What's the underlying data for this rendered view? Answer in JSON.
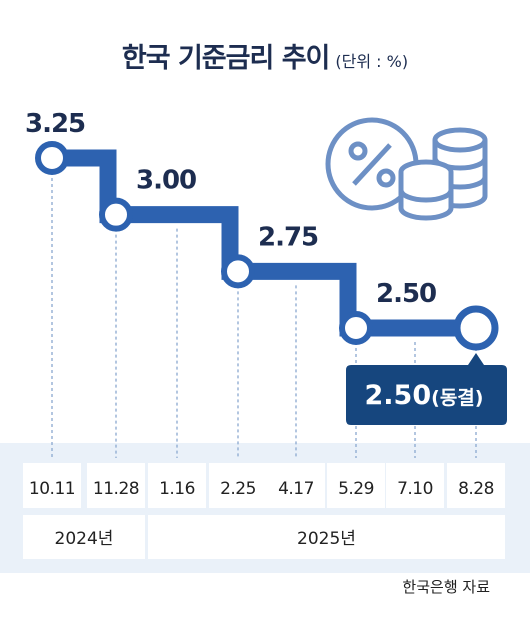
{
  "title": "한국 기준금리 추이",
  "unit": "(단위 : %)",
  "source": "한국은행 자료",
  "colors": {
    "line": "#2d62b0",
    "frozen_badge": "#16467e",
    "grid": "#8aa8d0",
    "background_band": "#eaf1f9",
    "cell": "#ffffff"
  },
  "chart_data": {
    "type": "line",
    "title": "한국 기준금리 추이",
    "ylabel": "(단위 : %)",
    "categories": [
      "10.11",
      "11.28",
      "1.16",
      "2.25",
      "4.17",
      "5.29",
      "7.10",
      "8.28"
    ],
    "years": [
      {
        "label": "2024년",
        "span": [
          0,
          1
        ]
      },
      {
        "label": "2025년",
        "span": [
          2,
          7
        ]
      }
    ],
    "series": [
      {
        "values": [
          3.25,
          3.0,
          3.0,
          2.75,
          2.75,
          2.5,
          2.5,
          2.5
        ]
      }
    ],
    "point_labels": [
      {
        "index": 0,
        "text": "3.25"
      },
      {
        "index": 1,
        "text": "3.00"
      },
      {
        "index": 3,
        "text": "2.75"
      },
      {
        "index": 5,
        "text": "2.50"
      }
    ],
    "markers": [
      0,
      1,
      3,
      5,
      7
    ],
    "callout": {
      "index": 7,
      "value": "2.50",
      "note": "(동결)"
    },
    "step": true,
    "ylim": [
      2.3,
      3.4
    ]
  },
  "icon": "percent-coins-icon"
}
